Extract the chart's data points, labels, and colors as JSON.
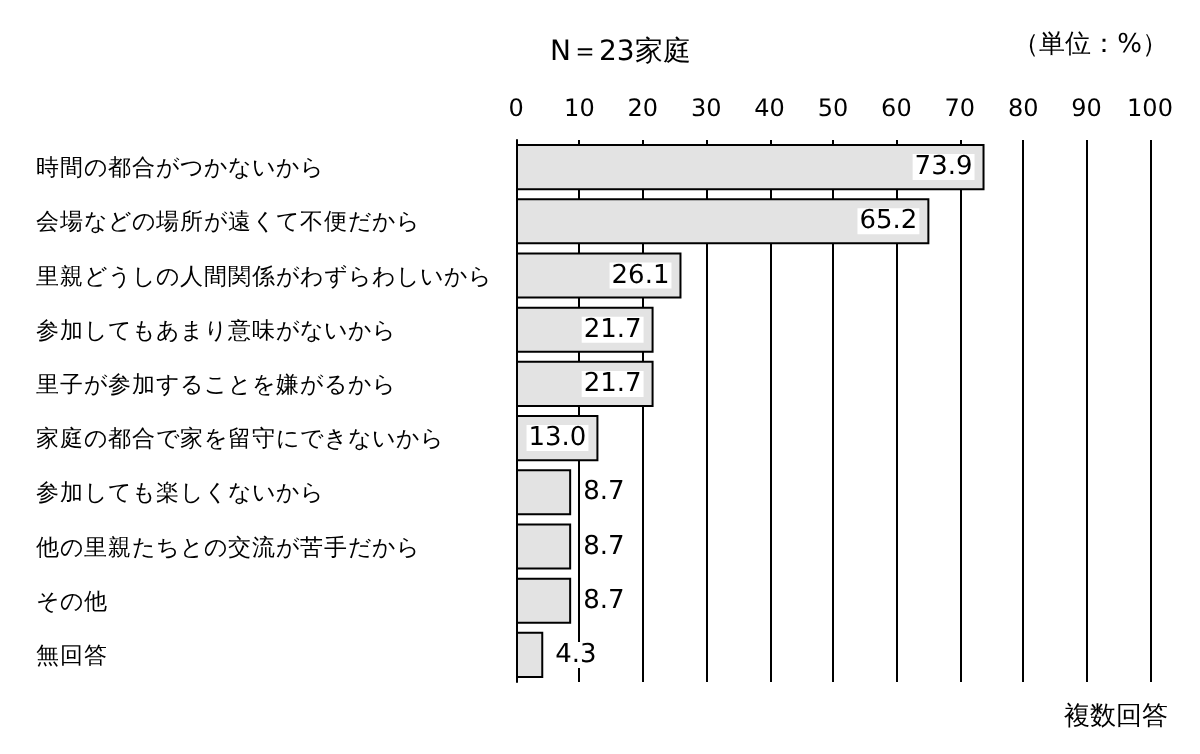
{
  "chart_data": {
    "type": "bar",
    "orientation": "horizontal",
    "title": "N＝23家庭",
    "annotations": [
      "（単位：%）",
      "複数回答"
    ],
    "categories": [
      "時間の都合がつかないから",
      "会場などの場所が遠くて不便だから",
      "里親どうしの人間関係がわずらわしいから",
      "参加してもあまり意味がないから",
      "里子が参加することを嫌がるから",
      "家庭の都合で家を留守にできないから",
      "参加しても楽しくないから",
      "他の里親たちとの交流が苦手だから",
      "その他",
      "無回答"
    ],
    "values": [
      73.9,
      65.2,
      26.1,
      21.7,
      21.7,
      13.0,
      8.7,
      8.7,
      8.7,
      4.3
    ],
    "value_labels": [
      "73.9",
      "65.2",
      "26.1",
      "21.7",
      "21.7",
      "13.0",
      "8.7",
      "8.7",
      "8.7",
      "4.3"
    ],
    "color": "#e3e3e3",
    "xlim": [
      0,
      100
    ],
    "xticks": [
      0,
      10,
      20,
      30,
      40,
      50,
      60,
      70,
      80,
      90,
      100
    ],
    "grid": "x"
  }
}
